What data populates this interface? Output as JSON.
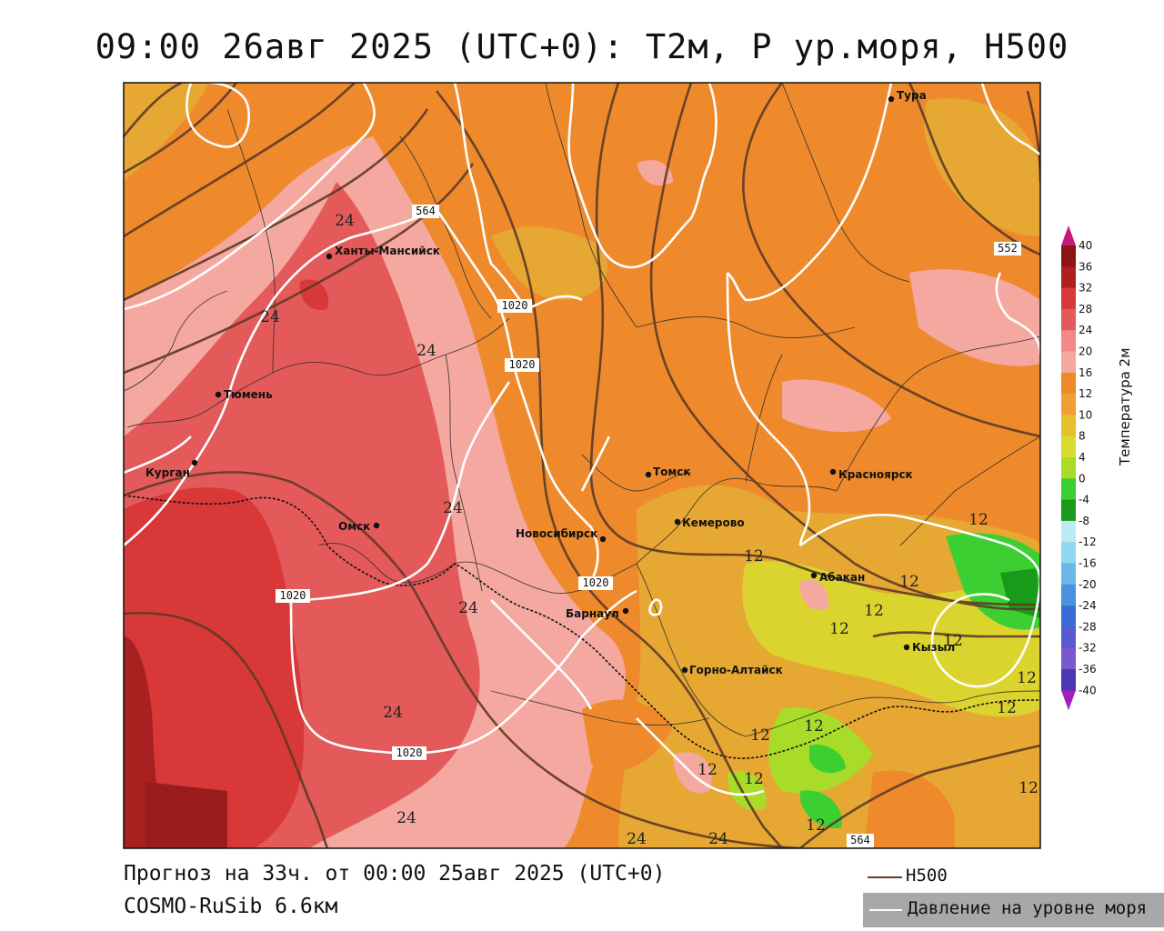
{
  "title": "09:00 26авг 2025 (UTC+0): T2м, P ур.моря, H500",
  "footer": {
    "forecast": "Прогноз на 33ч. от 00:00 25авг 2025 (UTC+0)",
    "model": "COSMO-RuSib 6.6км"
  },
  "legend": {
    "h500": "H500",
    "pressure": "Давление на уровне моря",
    "h500_color": "#6b3a2a",
    "pressure_color": "#ffffff"
  },
  "colorbar": {
    "title": "Температура 2м",
    "ticks": [
      "40",
      "36",
      "32",
      "28",
      "24",
      "20",
      "16",
      "12",
      "10",
      "8",
      "4",
      "0",
      "-4",
      "-8",
      "-12",
      "-16",
      "-20",
      "-24",
      "-28",
      "-32",
      "-36",
      "-40"
    ],
    "colors": [
      "#c8177e",
      "#8b1414",
      "#b01e1e",
      "#d83838",
      "#e45a5a",
      "#f28888",
      "#f5a8a0",
      "#ee8a2c",
      "#f0a032",
      "#e6c02e",
      "#d8dc2e",
      "#a8dc28",
      "#3ccf32",
      "#1a9a1a",
      "#bceaf2",
      "#90d8f0",
      "#6ab8ea",
      "#4a92e0",
      "#3a6cd6",
      "#5a5ad0",
      "#7a58d0",
      "#4a38b0",
      "#1a1a90",
      "#a020c0"
    ]
  },
  "cities": [
    {
      "name": "Тура"
    },
    {
      "name": "Ханты-Мансийск"
    },
    {
      "name": "Тюмень"
    },
    {
      "name": "Курган"
    },
    {
      "name": "Омск"
    },
    {
      "name": "Новосибирск"
    },
    {
      "name": "Томск"
    },
    {
      "name": "Кемерово"
    },
    {
      "name": "Красноярск"
    },
    {
      "name": "Абакан"
    },
    {
      "name": "Барнаул"
    },
    {
      "name": "Горно-Алтайск"
    },
    {
      "name": "Кызыл"
    }
  ],
  "contour_labels": {
    "h500": [
      "564",
      "552",
      "564"
    ],
    "pressure": [
      "1020",
      "1020",
      "1020",
      "1020",
      "1020"
    ],
    "temperature": [
      "24",
      "24",
      "24",
      "24",
      "24",
      "24",
      "24",
      "24",
      "24",
      "12",
      "12",
      "12",
      "12",
      "12",
      "12",
      "12",
      "12",
      "12",
      "12",
      "12",
      "12",
      "12",
      "12"
    ]
  }
}
